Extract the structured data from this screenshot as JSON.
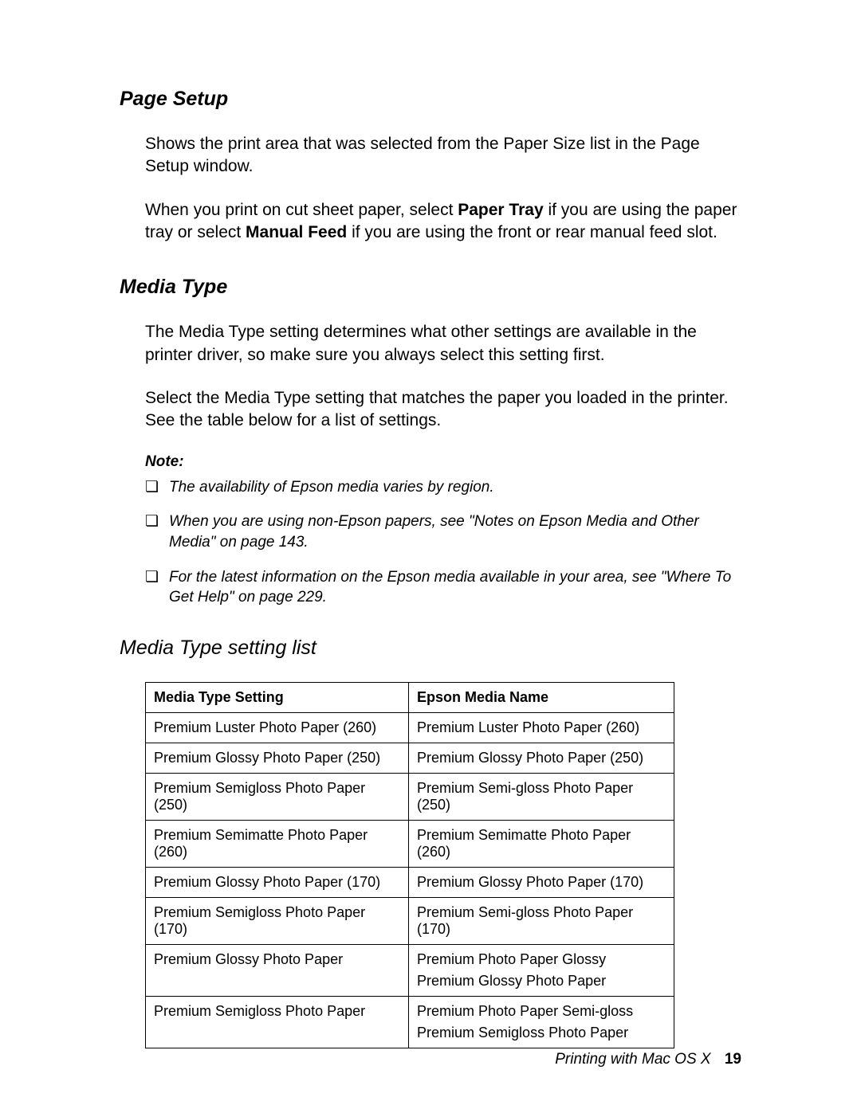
{
  "sections": {
    "page_setup": {
      "heading": "Page Setup",
      "p1": "Shows the print area that was selected from the Paper Size list in the Page Setup window.",
      "p2_pre": "When you print on cut sheet paper, select ",
      "p2_bold1": "Paper Tray",
      "p2_mid": " if you are using the paper tray or select ",
      "p2_bold2": "Manual Feed",
      "p2_post": " if you are using the front or rear manual feed slot."
    },
    "media_type": {
      "heading": "Media Type",
      "p1": "The Media Type setting determines what other settings are available in the printer driver, so make sure you always select this setting first.",
      "p2": "Select the Media Type setting that matches the paper you loaded in the printer. See the table below for a list of settings.",
      "note_label": "Note:",
      "notes": [
        "The availability of Epson media varies by region.",
        "When you are using non-Epson papers, see \"Notes on Epson Media and Other Media\" on page 143.",
        "For the latest information on the Epson media available in your area, see \"Where To Get Help\" on page 229."
      ]
    },
    "media_list": {
      "heading": "Media Type setting list",
      "columns": [
        "Media Type Setting",
        "Epson Media Name"
      ],
      "rows": [
        {
          "setting": "Premium Luster Photo Paper (260)",
          "names": [
            "Premium Luster Photo Paper (260)"
          ]
        },
        {
          "setting": "Premium Glossy Photo Paper (250)",
          "names": [
            "Premium Glossy Photo Paper (250)"
          ]
        },
        {
          "setting": "Premium Semigloss Photo Paper (250)",
          "names": [
            "Premium Semi-gloss Photo Paper (250)"
          ]
        },
        {
          "setting": "Premium Semimatte Photo Paper (260)",
          "names": [
            "Premium Semimatte Photo Paper (260)"
          ]
        },
        {
          "setting": "Premium Glossy Photo Paper (170)",
          "names": [
            "Premium Glossy Photo Paper (170)"
          ]
        },
        {
          "setting": "Premium Semigloss Photo Paper (170)",
          "names": [
            "Premium Semi-gloss Photo Paper (170)"
          ]
        },
        {
          "setting": "Premium Glossy Photo Paper",
          "names": [
            "Premium Photo Paper Glossy",
            "Premium Glossy Photo Paper"
          ]
        },
        {
          "setting": "Premium Semigloss Photo Paper",
          "names": [
            "Premium Photo Paper Semi-gloss",
            "Premium Semigloss Photo Paper"
          ]
        }
      ]
    }
  },
  "footer": {
    "text": "Printing with Mac OS X",
    "page": "19"
  },
  "style": {
    "heading_fontsize_pt": 19,
    "body_fontsize_pt": 16,
    "note_fontsize_pt": 14,
    "table_fontsize_pt": 13,
    "text_color": "#000000",
    "background_color": "#ffffff",
    "table_border_color": "#000000"
  }
}
